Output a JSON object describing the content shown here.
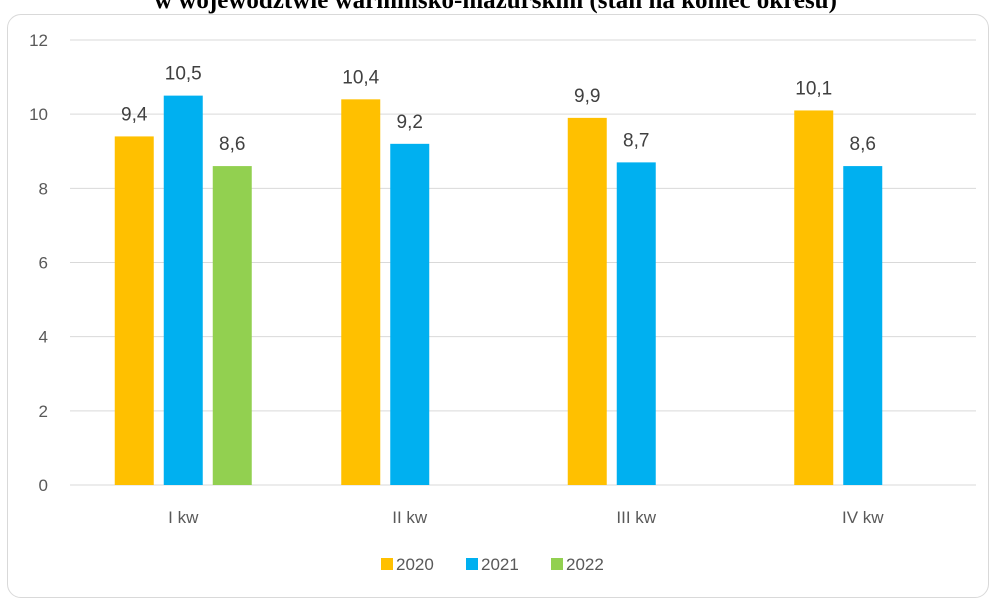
{
  "chart_data": {
    "type": "bar",
    "title": "w województwie warmińsko-mazurskim (stan na koniec okresu)",
    "categories": [
      "I kw",
      "II kw",
      "III kw",
      "IV kw"
    ],
    "series": [
      {
        "name": "2020",
        "color": "#FFC000",
        "values": [
          9.4,
          10.4,
          9.9,
          10.1
        ],
        "labels": [
          "9,4",
          "10,4",
          "9,9",
          "10,1"
        ]
      },
      {
        "name": "2021",
        "color": "#00B0F0",
        "values": [
          10.5,
          9.2,
          8.7,
          8.6
        ],
        "labels": [
          "10,5",
          "9,2",
          "8,7",
          "8,6"
        ]
      },
      {
        "name": "2022",
        "color": "#92D050",
        "values": [
          8.6,
          null,
          null,
          null
        ],
        "labels": [
          "8,6",
          "",
          "",
          ""
        ]
      }
    ],
    "ylim": [
      0,
      12
    ],
    "yticks": [
      0,
      2,
      4,
      6,
      8,
      10,
      12
    ],
    "grid": true,
    "legend": "bottom"
  }
}
